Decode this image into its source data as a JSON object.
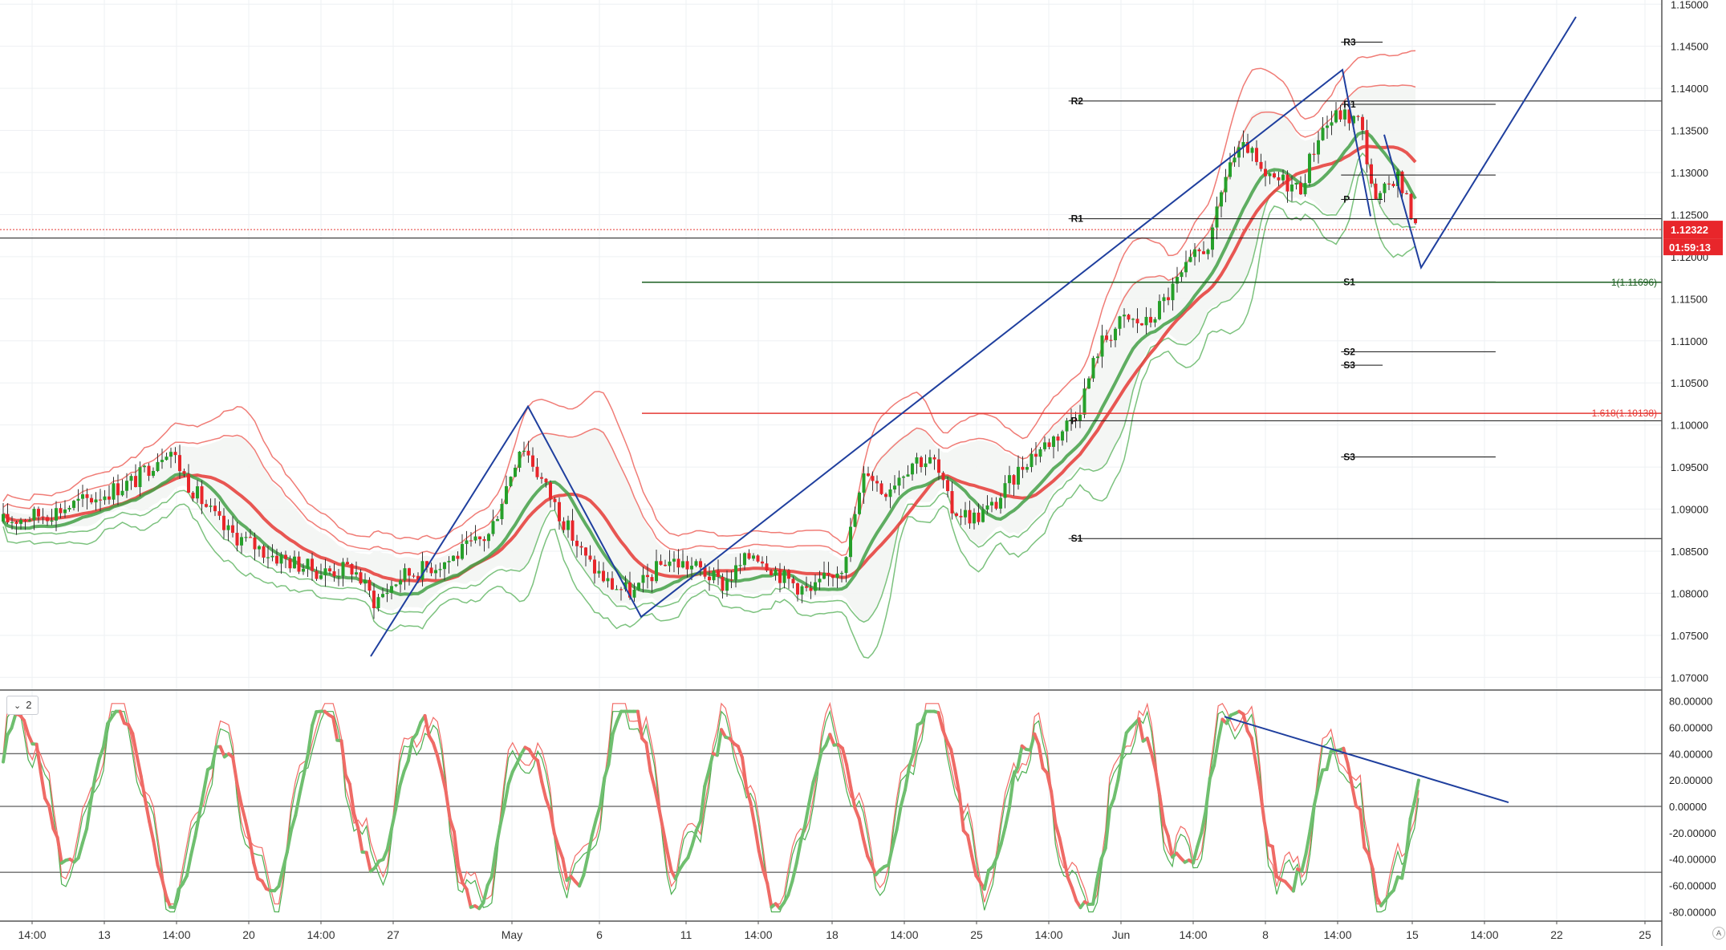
{
  "chart_data": [
    {
      "type": "candlestick",
      "instrument_note": "",
      "price_axis": {
        "range": [
          1.0685,
          1.1505
        ],
        "ticks": [
          "1.15000",
          "1.14500",
          "1.14000",
          "1.13500",
          "1.13000",
          "1.12500",
          "1.12000",
          "1.11500",
          "1.11000",
          "1.10500",
          "1.10000",
          "1.09500",
          "1.09000",
          "1.08500",
          "1.08000",
          "1.07500",
          "1.07000"
        ]
      },
      "time_axis": {
        "ticks": [
          "14:00",
          "13",
          "14:00",
          "20",
          "14:00",
          "27",
          "May",
          "6",
          "11",
          "14:00",
          "18",
          "14:00",
          "25",
          "14:00",
          "Jun",
          "14:00",
          "8",
          "14:00",
          "15",
          "14:00",
          "22",
          "25"
        ]
      },
      "last_price": "1.12322",
      "countdown": "01:59:13",
      "last_price_value": 1.12322,
      "second_line_value": 1.1222,
      "pivot_levels": [
        {
          "label": "R2",
          "value": 1.1385,
          "from": 0.643,
          "to": 1.0
        },
        {
          "label": "R1",
          "value": 1.1245,
          "from": 0.643,
          "to": 1.0
        },
        {
          "label": "P",
          "value": 1.1005,
          "from": 0.643,
          "to": 1.0
        },
        {
          "label": "S1",
          "value": 1.0865,
          "from": 0.643,
          "to": 1.0
        },
        {
          "label": "R3",
          "value": 1.1455,
          "from": 0.807,
          "to": 0.832
        },
        {
          "label": "R1",
          "value": 1.1381,
          "from": 0.807,
          "to": 0.9
        },
        {
          "label": "",
          "value": 1.1297,
          "from": 0.807,
          "to": 0.9
        },
        {
          "label": "P",
          "value": 1.1268,
          "from": 0.807,
          "to": 0.832
        },
        {
          "label": "S1",
          "value": 1.117,
          "from": 0.807,
          "to": 0.9
        },
        {
          "label": "S2",
          "value": 1.1087,
          "from": 0.807,
          "to": 0.9
        },
        {
          "label": "S3",
          "value": 1.1071,
          "from": 0.807,
          "to": 0.832
        },
        {
          "label": "S3",
          "value": 1.0962,
          "from": 0.807,
          "to": 0.9
        }
      ],
      "fib_levels": [
        {
          "label": "1(1.11696)",
          "value": 1.11696,
          "color": "#1b5e20"
        },
        {
          "label": "1.618(1.10138)",
          "value": 1.10138,
          "color": "#e53935"
        }
      ],
      "colors": {
        "up": "#26a02a",
        "down": "#e8262b",
        "ma_slow": "#e53935",
        "ma_fast": "#43a047",
        "trend": "#1f3f9e"
      }
    },
    {
      "type": "line",
      "pane": "2",
      "y_axis": {
        "range": [
          -87,
          87
        ],
        "ticks": [
          "80.00000",
          "60.00000",
          "40.00000",
          "20.00000",
          "0.00000",
          "-20.00000",
          "-40.00000",
          "-60.00000",
          "-80.00000"
        ]
      },
      "levels": [
        40,
        0,
        -50
      ]
    }
  ]
}
